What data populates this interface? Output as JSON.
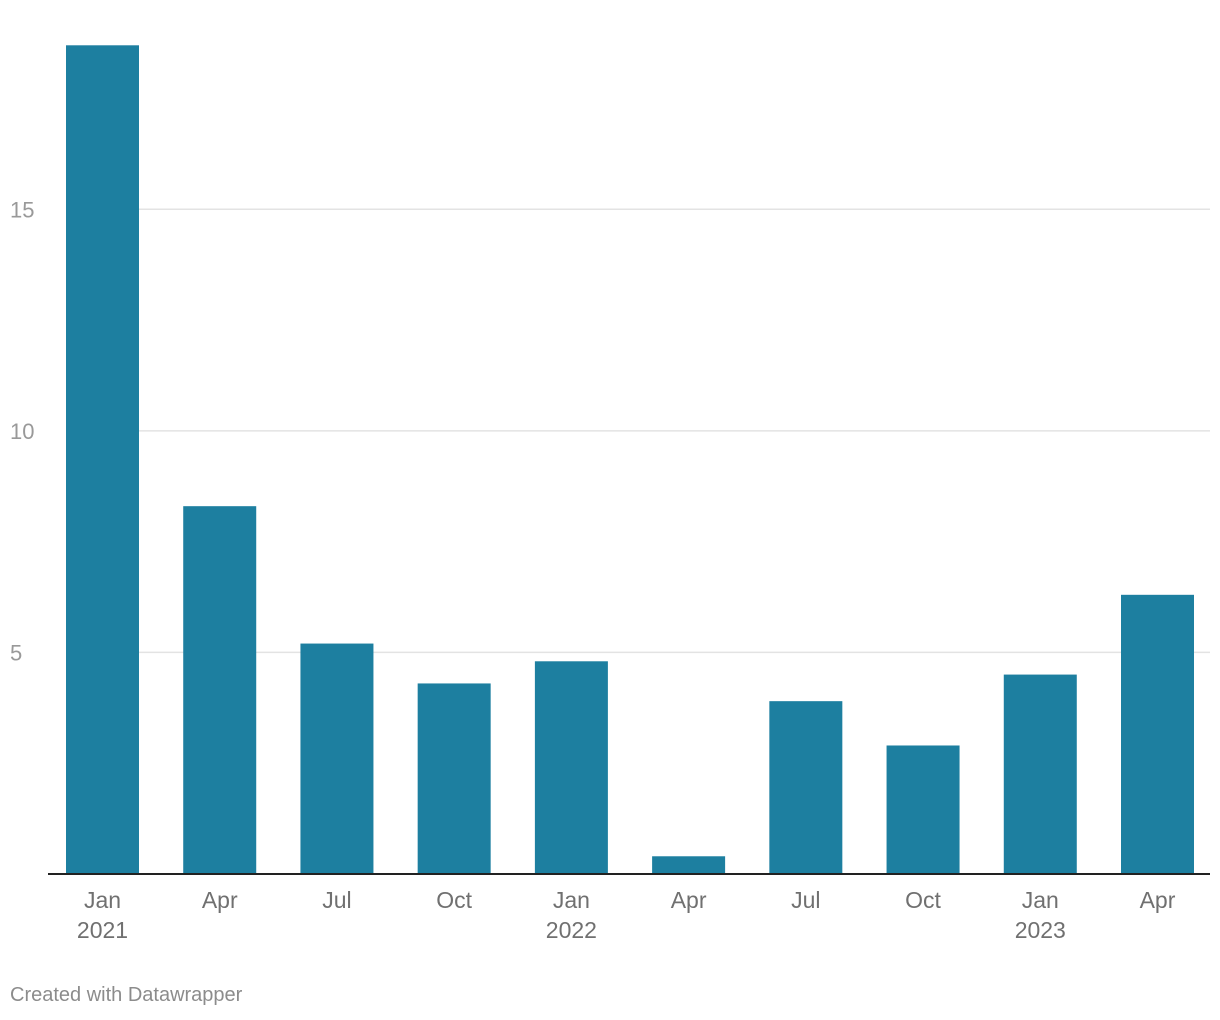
{
  "chart_data": {
    "type": "bar",
    "title": "",
    "xlabel": "",
    "ylabel": "",
    "categories": [
      "Jan 2021",
      "Apr 2021",
      "Jul 2021",
      "Oct 2021",
      "Jan 2022",
      "Apr 2022",
      "Jul 2022",
      "Oct 2022",
      "Jan 2023",
      "Apr 2023"
    ],
    "x_tick_labels": [
      {
        "line1": "Jan",
        "line2": "2021"
      },
      {
        "line1": "Apr",
        "line2": ""
      },
      {
        "line1": "Jul",
        "line2": ""
      },
      {
        "line1": "Oct",
        "line2": ""
      },
      {
        "line1": "Jan",
        "line2": "2022"
      },
      {
        "line1": "Apr",
        "line2": ""
      },
      {
        "line1": "Jul",
        "line2": ""
      },
      {
        "line1": "Oct",
        "line2": ""
      },
      {
        "line1": "Jan",
        "line2": "2023"
      },
      {
        "line1": "Apr",
        "line2": ""
      }
    ],
    "values": [
      18.7,
      8.3,
      5.2,
      4.3,
      4.8,
      0.4,
      3.9,
      2.9,
      4.5,
      6.3
    ],
    "ylim": [
      0,
      19
    ],
    "y_ticks": [
      5,
      10,
      15
    ],
    "grid": true,
    "legend": "none",
    "bar_color": "#1d7fa0"
  },
  "footer": {
    "credit": "Created with Datawrapper"
  }
}
